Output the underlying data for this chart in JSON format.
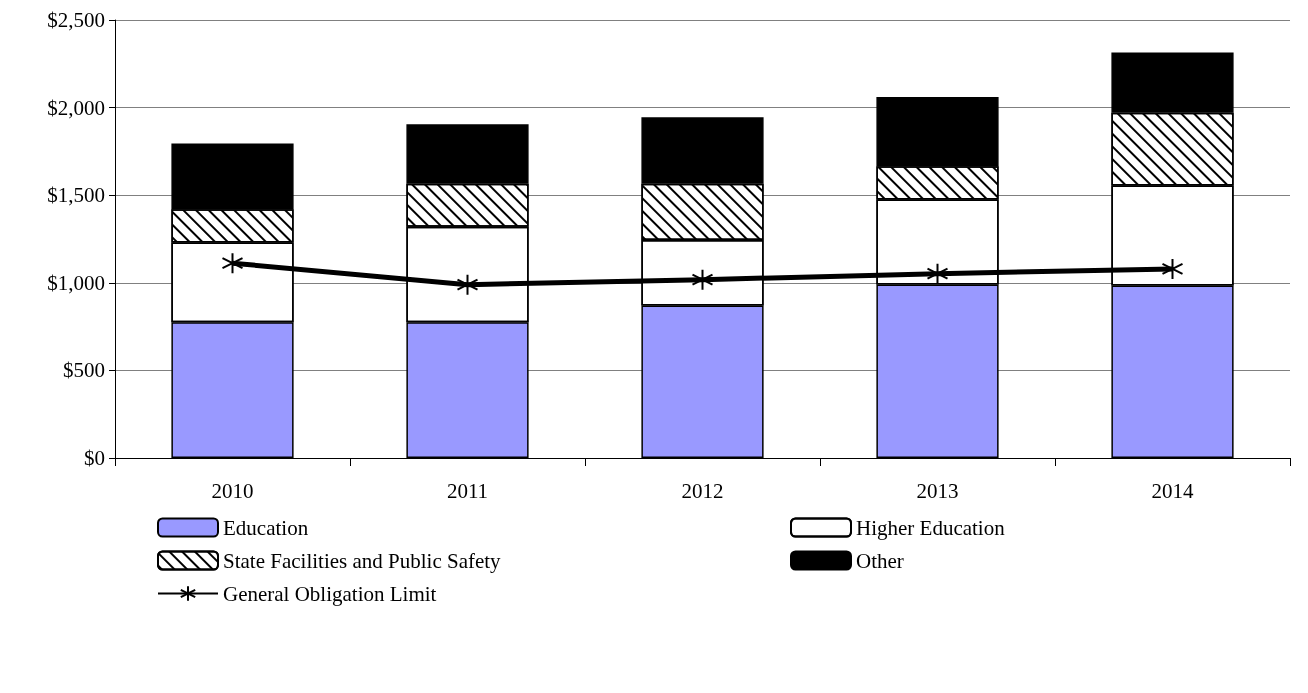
{
  "chart_data": {
    "type": "bar",
    "stacked": true,
    "categories": [
      "2010",
      "2011",
      "2012",
      "2013",
      "2014"
    ],
    "series": [
      {
        "name": "Education",
        "color": "#9999ff",
        "values": [
          775,
          775,
          870,
          990,
          985
        ]
      },
      {
        "name": "Higher Education",
        "color": "#ffffff",
        "values": [
          455,
          545,
          375,
          485,
          570
        ]
      },
      {
        "name": "State Facilities and Public Safety",
        "color": "#ffffff",
        "values": [
          190,
          245,
          320,
          190,
          415
        ]
      },
      {
        "name": "Other",
        "color": "#000000",
        "values": [
          375,
          340,
          380,
          395,
          345
        ]
      },
      {
        "name": "General Obligation Limit",
        "type": "line",
        "color": "#000000",
        "marker": "cross",
        "values": [
          1112,
          989,
          1018,
          1052,
          1079
        ]
      }
    ],
    "ylim": [
      0,
      2500
    ],
    "yticks": [
      {
        "value": 0,
        "label": "$0"
      },
      {
        "value": 500,
        "label": "$500"
      },
      {
        "value": 1000,
        "label": "$1,000"
      },
      {
        "value": 1500,
        "label": "$1,500"
      },
      {
        "value": 2000,
        "label": "$2,000"
      },
      {
        "value": 2500,
        "label": "$2,500"
      }
    ],
    "grid": "y",
    "legend": "bottom"
  }
}
